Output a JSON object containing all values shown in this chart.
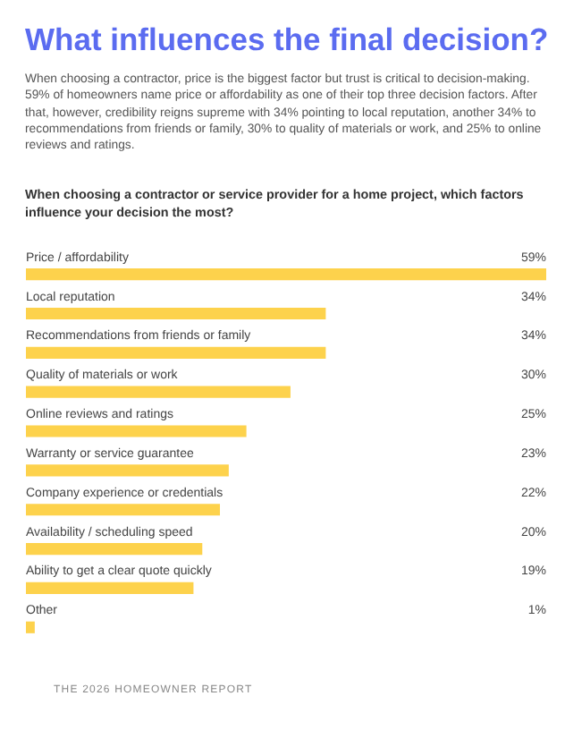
{
  "chart_data": {
    "type": "bar",
    "orientation": "horizontal",
    "title": "What influences the final decision?",
    "subtitle": "When choosing a contractor, price is the biggest factor but trust is critical to decision-making. 59% of homeowners name price or affordability as one of their top three decision factors. After that, however, credibility reigns supreme with 34% pointing to local reputation, another 34% to recommendations from friends or family, 30% to quality of materials or work, and 25% to online reviews and ratings.",
    "annotations": [
      "When choosing a contractor or service provider for a home project, which factors influence your decision the most?",
      "THE 2026 HOMEOWNER REPORT"
    ],
    "categories": [
      "Price / affordability",
      "Local reputation",
      "Recommendations from friends or family",
      "Quality of materials or work",
      "Online reviews and ratings",
      "Warranty or service guarantee",
      "Company experience or credentials",
      "Availability / scheduling speed",
      "Ability to get a clear quote quickly",
      "Other"
    ],
    "values": [
      59,
      34,
      34,
      30,
      25,
      23,
      22,
      20,
      19,
      1
    ],
    "value_labels": [
      "59%",
      "34%",
      "34%",
      "30%",
      "25%",
      "23%",
      "22%",
      "20%",
      "19%",
      "1%"
    ],
    "color": "#fdd24c",
    "xlim": [
      0,
      59
    ],
    "tick_labels": false,
    "grid": false
  }
}
